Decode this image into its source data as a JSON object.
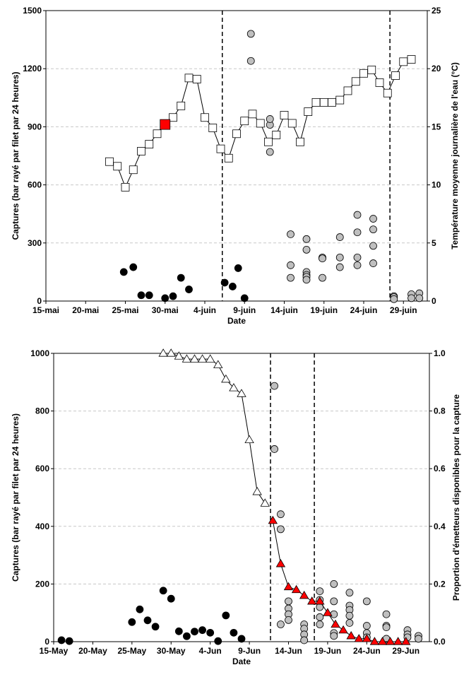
{
  "chart_data": [
    {
      "type": "scatter",
      "xlabel": "Date",
      "ylabel": "Captures (bar rayé par filet par 24 heures)",
      "y2label": "Température moyenne journalière de l'eau (°C)",
      "x_ticks": [
        "15-mai",
        "20-mai",
        "25-mai",
        "30-mai",
        "4-juin",
        "9-juin",
        "14-juin",
        "19-juin",
        "24-juin",
        "29-juin"
      ],
      "x_tick_days": [
        0,
        5,
        10,
        15,
        20,
        25,
        30,
        35,
        40,
        45
      ],
      "ylim": [
        0,
        1500
      ],
      "y_ticks": [
        0,
        300,
        600,
        900,
        1200,
        1500
      ],
      "y2lim": [
        0,
        25
      ],
      "y2_ticks": [
        0,
        5,
        10,
        15,
        20,
        25
      ],
      "grid": "horizontal dashed",
      "vlines_day": [
        22.2,
        43.3
      ],
      "series": [
        {
          "marker": "black-circle",
          "color": "#000000",
          "points": [
            [
              9.8,
              150
            ],
            [
              11,
              175
            ],
            [
              12,
              30
            ],
            [
              13,
              30
            ],
            [
              15,
              15
            ],
            [
              16,
              25
            ],
            [
              17,
              120
            ],
            [
              18,
              60
            ],
            [
              22.5,
              95
            ],
            [
              23.5,
              75
            ],
            [
              24.2,
              170
            ],
            [
              25,
              15
            ]
          ]
        },
        {
          "marker": "grey-circle",
          "color": "#bfbfbf",
          "points": [
            [
              25.8,
              1380
            ],
            [
              25.8,
              1240
            ],
            [
              28.2,
              910
            ],
            [
              28.2,
              940
            ],
            [
              28.2,
              770
            ],
            [
              30.8,
              345
            ],
            [
              30.8,
              185
            ],
            [
              30.8,
              120
            ],
            [
              32.8,
              320
            ],
            [
              32.8,
              265
            ],
            [
              32.8,
              150
            ],
            [
              32.8,
              135
            ],
            [
              32.8,
              125
            ],
            [
              32.8,
              110
            ],
            [
              34.8,
              225
            ],
            [
              34.8,
              220
            ],
            [
              34.8,
              120
            ],
            [
              37,
              330
            ],
            [
              37,
              225
            ],
            [
              37,
              175
            ],
            [
              39.2,
              445
            ],
            [
              39.2,
              355
            ],
            [
              39.2,
              225
            ],
            [
              39.2,
              185
            ],
            [
              41.2,
              425
            ],
            [
              41.2,
              370
            ],
            [
              41.2,
              285
            ],
            [
              41.2,
              195
            ],
            [
              43.8,
              25
            ],
            [
              43.8,
              20
            ],
            [
              43.8,
              10
            ],
            [
              46,
              35
            ],
            [
              46,
              15
            ],
            [
              47,
              40
            ],
            [
              47,
              15
            ]
          ]
        },
        {
          "marker": "open-square-line",
          "color": "#ffffff",
          "axis": "right",
          "points": [
            [
              8,
              12
            ],
            [
              9,
              11.6
            ],
            [
              10,
              9.8
            ],
            [
              11,
              11.3
            ],
            [
              12,
              12.9
            ],
            [
              13,
              13.5
            ],
            [
              14,
              14.4
            ],
            [
              15,
              15.2
            ],
            [
              16,
              15.8
            ],
            [
              17,
              16.8
            ],
            [
              18,
              19.2
            ],
            [
              19,
              19.1
            ],
            [
              20,
              15.8
            ],
            [
              21,
              14.9
            ],
            [
              22,
              13.1
            ],
            [
              23,
              12.3
            ],
            [
              24,
              14.4
            ],
            [
              25,
              15.5
            ],
            [
              26,
              16.1
            ],
            [
              27,
              15.3
            ],
            [
              28,
              13.7
            ],
            [
              29,
              14.3
            ],
            [
              30,
              16
            ],
            [
              31,
              15.3
            ],
            [
              32,
              13.7
            ],
            [
              33,
              16.3
            ],
            [
              34,
              17.1
            ],
            [
              35,
              17.1
            ],
            [
              36,
              17.1
            ],
            [
              37,
              17.3
            ],
            [
              38,
              18.1
            ],
            [
              39,
              18.9
            ],
            [
              40,
              19.6
            ],
            [
              41,
              19.9
            ],
            [
              42,
              18.8
            ],
            [
              43,
              17.9
            ],
            [
              44,
              19.4
            ],
            [
              45,
              20.6
            ],
            [
              46,
              20.8
            ]
          ]
        },
        {
          "marker": "red-square",
          "color": "#ff0000",
          "axis": "right",
          "points": [
            [
              15,
              15.2
            ]
          ]
        }
      ]
    },
    {
      "type": "scatter",
      "xlabel": "Date",
      "ylabel": "Captures (bar rayé par filet par 24 heures)",
      "y2label": "Proportion d'émetteurs disponibles pour la capture",
      "x_ticks": [
        "15-May",
        "20-May",
        "25-May",
        "30-May",
        "4-Jun",
        "9-Jun",
        "14-Jun",
        "19-Jun",
        "24-Jun",
        "29-Jun"
      ],
      "x_tick_days": [
        0,
        5,
        10,
        15,
        20,
        25,
        30,
        35,
        40,
        45
      ],
      "ylim": [
        0,
        1000
      ],
      "y_ticks": [
        0,
        200,
        400,
        600,
        800,
        1000
      ],
      "y2lim": [
        0,
        1
      ],
      "y2_ticks": [
        "0.0",
        "0.2",
        "0.4",
        "0.6",
        "0.8",
        "1.0"
      ],
      "grid": "horizontal dashed",
      "vlines_day": [
        27.7,
        33.3
      ],
      "series": [
        {
          "marker": "black-circle",
          "color": "#000000",
          "points": [
            [
              1,
              5
            ],
            [
              2,
              2
            ],
            [
              10,
              68
            ],
            [
              11,
              112
            ],
            [
              12,
              74
            ],
            [
              13,
              52
            ],
            [
              14,
              177
            ],
            [
              15,
              149
            ],
            [
              16,
              36
            ],
            [
              17,
              19
            ],
            [
              18,
              35
            ],
            [
              19,
              40
            ],
            [
              20,
              31
            ],
            [
              21,
              2
            ],
            [
              22,
              91
            ],
            [
              23,
              31
            ],
            [
              24,
              10
            ]
          ]
        },
        {
          "marker": "grey-circle",
          "color": "#bfbfbf",
          "points": [
            [
              28.2,
              887
            ],
            [
              28.2,
              668
            ],
            [
              29,
              442
            ],
            [
              29,
              390
            ],
            [
              29,
              60
            ],
            [
              30,
              140
            ],
            [
              30,
              115
            ],
            [
              30,
              95
            ],
            [
              30,
              75
            ],
            [
              32,
              60
            ],
            [
              32,
              45
            ],
            [
              32,
              25
            ],
            [
              32,
              5
            ],
            [
              34,
              175
            ],
            [
              34,
              145
            ],
            [
              34,
              120
            ],
            [
              34,
              85
            ],
            [
              34,
              60
            ],
            [
              35.8,
              200
            ],
            [
              35.8,
              140
            ],
            [
              35.8,
              95
            ],
            [
              35.8,
              30
            ],
            [
              35.8,
              20
            ],
            [
              37.8,
              170
            ],
            [
              37.8,
              125
            ],
            [
              37.8,
              110
            ],
            [
              37.8,
              90
            ],
            [
              37.8,
              65
            ],
            [
              40,
              140
            ],
            [
              40,
              55
            ],
            [
              40,
              30
            ],
            [
              40,
              15
            ],
            [
              42.5,
              95
            ],
            [
              42.5,
              55
            ],
            [
              42.5,
              50
            ],
            [
              42.5,
              10
            ],
            [
              45.2,
              40
            ],
            [
              45.2,
              25
            ],
            [
              45.2,
              15
            ],
            [
              46.6,
              20
            ],
            [
              46.6,
              10
            ]
          ]
        },
        {
          "marker": "open-triangle-line",
          "color": "#ffffff",
          "axis": "right",
          "points": [
            [
              14,
              1.0
            ],
            [
              15,
              1.0
            ],
            [
              16,
              0.99
            ],
            [
              17,
              0.98
            ],
            [
              18,
              0.98
            ],
            [
              19,
              0.98
            ],
            [
              20,
              0.98
            ],
            [
              21,
              0.96
            ],
            [
              22,
              0.91
            ],
            [
              23,
              0.88
            ],
            [
              24,
              0.86
            ],
            [
              25,
              0.7
            ],
            [
              26,
              0.52
            ],
            [
              27,
              0.48
            ]
          ]
        },
        {
          "marker": "red-triangle-line",
          "color": "#ff0000",
          "axis": "right",
          "points": [
            [
              28,
              0.42
            ],
            [
              29,
              0.27
            ],
            [
              30,
              0.19
            ],
            [
              31,
              0.18
            ],
            [
              32,
              0.16
            ],
            [
              33,
              0.14
            ],
            [
              34,
              0.14
            ],
            [
              35,
              0.1
            ],
            [
              36,
              0.06
            ],
            [
              37,
              0.04
            ],
            [
              38,
              0.02
            ],
            [
              39,
              0.01
            ],
            [
              40,
              0.01
            ],
            [
              41,
              0.0
            ],
            [
              42,
              0.0
            ],
            [
              43,
              0.0
            ],
            [
              44,
              0.0
            ],
            [
              45,
              0.0
            ]
          ]
        }
      ]
    }
  ]
}
